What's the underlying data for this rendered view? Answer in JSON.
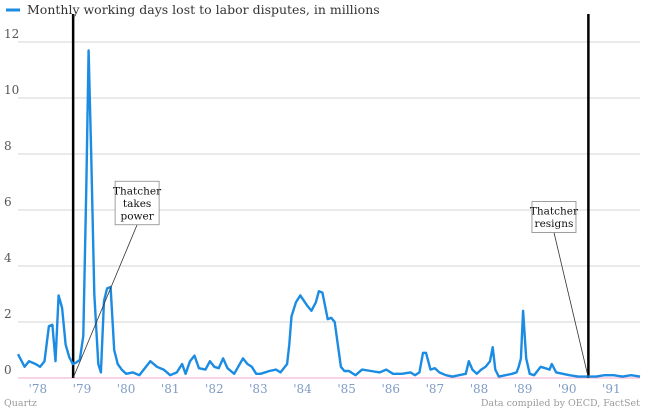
{
  "chart_data": {
    "type": "line",
    "legend": {
      "label": "Monthly working days lost to labor disputes, in millions",
      "color": "#1c8ce3",
      "placement": "top-left"
    },
    "y": {
      "min": 0,
      "max": 12.8,
      "ticks": [
        0,
        2,
        4,
        6,
        8,
        10,
        12
      ]
    },
    "x": {
      "min": 1977.6,
      "max": 1991.7,
      "ticks": [
        {
          "label": "'78",
          "year": 1978
        },
        {
          "label": "'79",
          "year": 1979
        },
        {
          "label": "'80",
          "year": 1980
        },
        {
          "label": "'81",
          "year": 1981
        },
        {
          "label": "'82",
          "year": 1982
        },
        {
          "label": "'83",
          "year": 1983
        },
        {
          "label": "'84",
          "year": 1984
        },
        {
          "label": "'85",
          "year": 1985
        },
        {
          "label": "'86",
          "year": 1986
        },
        {
          "label": "'87",
          "year": 1987
        },
        {
          "label": "'88",
          "year": 1988
        },
        {
          "label": "'89",
          "year": 1989
        },
        {
          "label": "'90",
          "year": 1990
        },
        {
          "label": "'91",
          "year": 1991
        }
      ]
    },
    "grid": true,
    "series": [
      {
        "name": "Monthly working days lost to labor disputes, in millions",
        "color": "#1c8ce3",
        "points": [
          [
            1977.6,
            0.85
          ],
          [
            1977.75,
            0.4
          ],
          [
            1977.85,
            0.6
          ],
          [
            1978.0,
            0.5
          ],
          [
            1978.1,
            0.4
          ],
          [
            1978.2,
            0.6
          ],
          [
            1978.3,
            1.85
          ],
          [
            1978.38,
            1.9
          ],
          [
            1978.45,
            0.6
          ],
          [
            1978.52,
            2.95
          ],
          [
            1978.6,
            2.5
          ],
          [
            1978.68,
            1.2
          ],
          [
            1978.76,
            0.75
          ],
          [
            1978.84,
            0.5
          ],
          [
            1978.92,
            0.55
          ],
          [
            1979.0,
            0.65
          ],
          [
            1979.08,
            1.5
          ],
          [
            1979.15,
            7.0
          ],
          [
            1979.2,
            11.7
          ],
          [
            1979.26,
            8.0
          ],
          [
            1979.33,
            3.0
          ],
          [
            1979.42,
            0.5
          ],
          [
            1979.48,
            0.2
          ],
          [
            1979.55,
            2.75
          ],
          [
            1979.62,
            3.2
          ],
          [
            1979.7,
            3.25
          ],
          [
            1979.78,
            1.0
          ],
          [
            1979.86,
            0.5
          ],
          [
            1979.95,
            0.3
          ],
          [
            1980.05,
            0.15
          ],
          [
            1980.2,
            0.2
          ],
          [
            1980.35,
            0.1
          ],
          [
            1980.6,
            0.6
          ],
          [
            1980.75,
            0.4
          ],
          [
            1980.9,
            0.3
          ],
          [
            1981.05,
            0.1
          ],
          [
            1981.2,
            0.2
          ],
          [
            1981.32,
            0.5
          ],
          [
            1981.4,
            0.15
          ],
          [
            1981.5,
            0.6
          ],
          [
            1981.6,
            0.8
          ],
          [
            1981.7,
            0.35
          ],
          [
            1981.85,
            0.3
          ],
          [
            1981.95,
            0.6
          ],
          [
            1982.05,
            0.4
          ],
          [
            1982.15,
            0.35
          ],
          [
            1982.25,
            0.7
          ],
          [
            1982.35,
            0.35
          ],
          [
            1982.5,
            0.15
          ],
          [
            1982.7,
            0.7
          ],
          [
            1982.8,
            0.5
          ],
          [
            1982.9,
            0.4
          ],
          [
            1983.0,
            0.15
          ],
          [
            1983.1,
            0.15
          ],
          [
            1983.3,
            0.25
          ],
          [
            1983.45,
            0.3
          ],
          [
            1983.55,
            0.2
          ],
          [
            1983.7,
            0.5
          ],
          [
            1983.75,
            1.2
          ],
          [
            1983.8,
            2.2
          ],
          [
            1983.9,
            2.7
          ],
          [
            1984.0,
            2.95
          ],
          [
            1984.15,
            2.6
          ],
          [
            1984.25,
            2.4
          ],
          [
            1984.35,
            2.7
          ],
          [
            1984.42,
            3.1
          ],
          [
            1984.5,
            3.05
          ],
          [
            1984.57,
            2.5
          ],
          [
            1984.62,
            2.1
          ],
          [
            1984.7,
            2.15
          ],
          [
            1984.78,
            2.0
          ],
          [
            1984.85,
            1.2
          ],
          [
            1984.92,
            0.4
          ],
          [
            1985.0,
            0.25
          ],
          [
            1985.1,
            0.25
          ],
          [
            1985.25,
            0.1
          ],
          [
            1985.4,
            0.3
          ],
          [
            1985.6,
            0.25
          ],
          [
            1985.8,
            0.2
          ],
          [
            1985.95,
            0.3
          ],
          [
            1986.1,
            0.15
          ],
          [
            1986.3,
            0.15
          ],
          [
            1986.5,
            0.2
          ],
          [
            1986.6,
            0.1
          ],
          [
            1986.7,
            0.2
          ],
          [
            1986.78,
            0.9
          ],
          [
            1986.85,
            0.9
          ],
          [
            1986.95,
            0.3
          ],
          [
            1987.05,
            0.35
          ],
          [
            1987.15,
            0.2
          ],
          [
            1987.3,
            0.1
          ],
          [
            1987.45,
            0.05
          ],
          [
            1987.6,
            0.1
          ],
          [
            1987.75,
            0.15
          ],
          [
            1987.82,
            0.6
          ],
          [
            1987.9,
            0.3
          ],
          [
            1988.0,
            0.15
          ],
          [
            1988.1,
            0.3
          ],
          [
            1988.2,
            0.4
          ],
          [
            1988.3,
            0.6
          ],
          [
            1988.36,
            1.1
          ],
          [
            1988.42,
            0.3
          ],
          [
            1988.5,
            0.05
          ],
          [
            1988.65,
            0.1
          ],
          [
            1988.8,
            0.15
          ],
          [
            1988.9,
            0.2
          ],
          [
            1988.95,
            0.4
          ],
          [
            1989.0,
            0.7
          ],
          [
            1989.05,
            2.4
          ],
          [
            1989.12,
            0.7
          ],
          [
            1989.2,
            0.15
          ],
          [
            1989.3,
            0.1
          ],
          [
            1989.45,
            0.4
          ],
          [
            1989.55,
            0.35
          ],
          [
            1989.65,
            0.3
          ],
          [
            1989.7,
            0.5
          ],
          [
            1989.8,
            0.2
          ],
          [
            1989.95,
            0.15
          ],
          [
            1990.1,
            0.1
          ],
          [
            1990.3,
            0.05
          ],
          [
            1990.5,
            0.05
          ],
          [
            1990.7,
            0.05
          ],
          [
            1990.9,
            0.1
          ],
          [
            1991.1,
            0.1
          ],
          [
            1991.3,
            0.05
          ],
          [
            1991.5,
            0.1
          ],
          [
            1991.7,
            0.05
          ]
        ]
      }
    ],
    "markers": [
      {
        "year": 1978.85,
        "label_lines": [
          "Thatcher",
          "takes",
          "power"
        ],
        "label_year": 1980.3,
        "label_value": 6.25
      },
      {
        "year": 1990.53,
        "label_lines": [
          "Thatcher",
          "resigns"
        ],
        "label_year": 1989.75,
        "label_value": 5.75
      }
    ]
  },
  "footer": {
    "left": "Quartz",
    "right": "Data compiled by OECD, FactSet"
  }
}
